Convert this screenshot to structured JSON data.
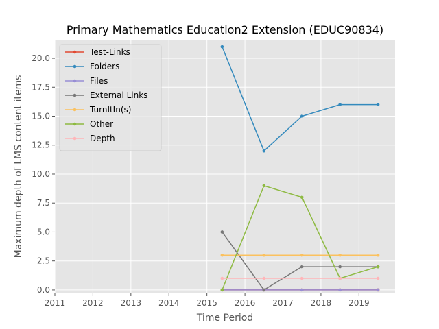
{
  "chart_data": {
    "type": "line",
    "title": "Primary Mathematics Education2 Extension (EDUC90834)",
    "xlabel": "Time Period",
    "ylabel": "Maximum depth of LMS content items",
    "xlim": [
      2011.0,
      2019.95
    ],
    "ylim": [
      -0.3,
      21.6
    ],
    "xticks": [
      2011,
      2012,
      2013,
      2014,
      2015,
      2016,
      2017,
      2018,
      2019
    ],
    "yticks": [
      0.0,
      2.5,
      5.0,
      7.5,
      10.0,
      12.5,
      15.0,
      17.5,
      20.0
    ],
    "ytick_labels": [
      "0.0",
      "2.5",
      "5.0",
      "7.5",
      "10.0",
      "12.5",
      "15.0",
      "17.5",
      "20.0"
    ],
    "grid": true,
    "background": "#e5e5e5",
    "legend_position": "upper-left",
    "x": [
      2015.4,
      2016.5,
      2017.5,
      2018.5,
      2019.5
    ],
    "series": [
      {
        "name": "Test-Links",
        "color": "#e24a33",
        "values": [
          0,
          0,
          0,
          0,
          0
        ]
      },
      {
        "name": "Folders",
        "color": "#348abd",
        "values": [
          21,
          12,
          15,
          16,
          16
        ]
      },
      {
        "name": "Files",
        "color": "#988ed5",
        "values": [
          0,
          0,
          0,
          0,
          0
        ]
      },
      {
        "name": "External Links",
        "color": "#777777",
        "values": [
          5,
          0,
          2,
          2,
          2
        ]
      },
      {
        "name": "TurnItIn(s)",
        "color": "#fbc15e",
        "values": [
          3,
          3,
          3,
          3,
          3
        ]
      },
      {
        "name": "Other",
        "color": "#8eba42",
        "values": [
          0,
          9,
          8,
          1,
          2
        ]
      },
      {
        "name": "Depth",
        "color": "#ffb5b8",
        "values": [
          1,
          1,
          1,
          1,
          1
        ]
      }
    ]
  }
}
